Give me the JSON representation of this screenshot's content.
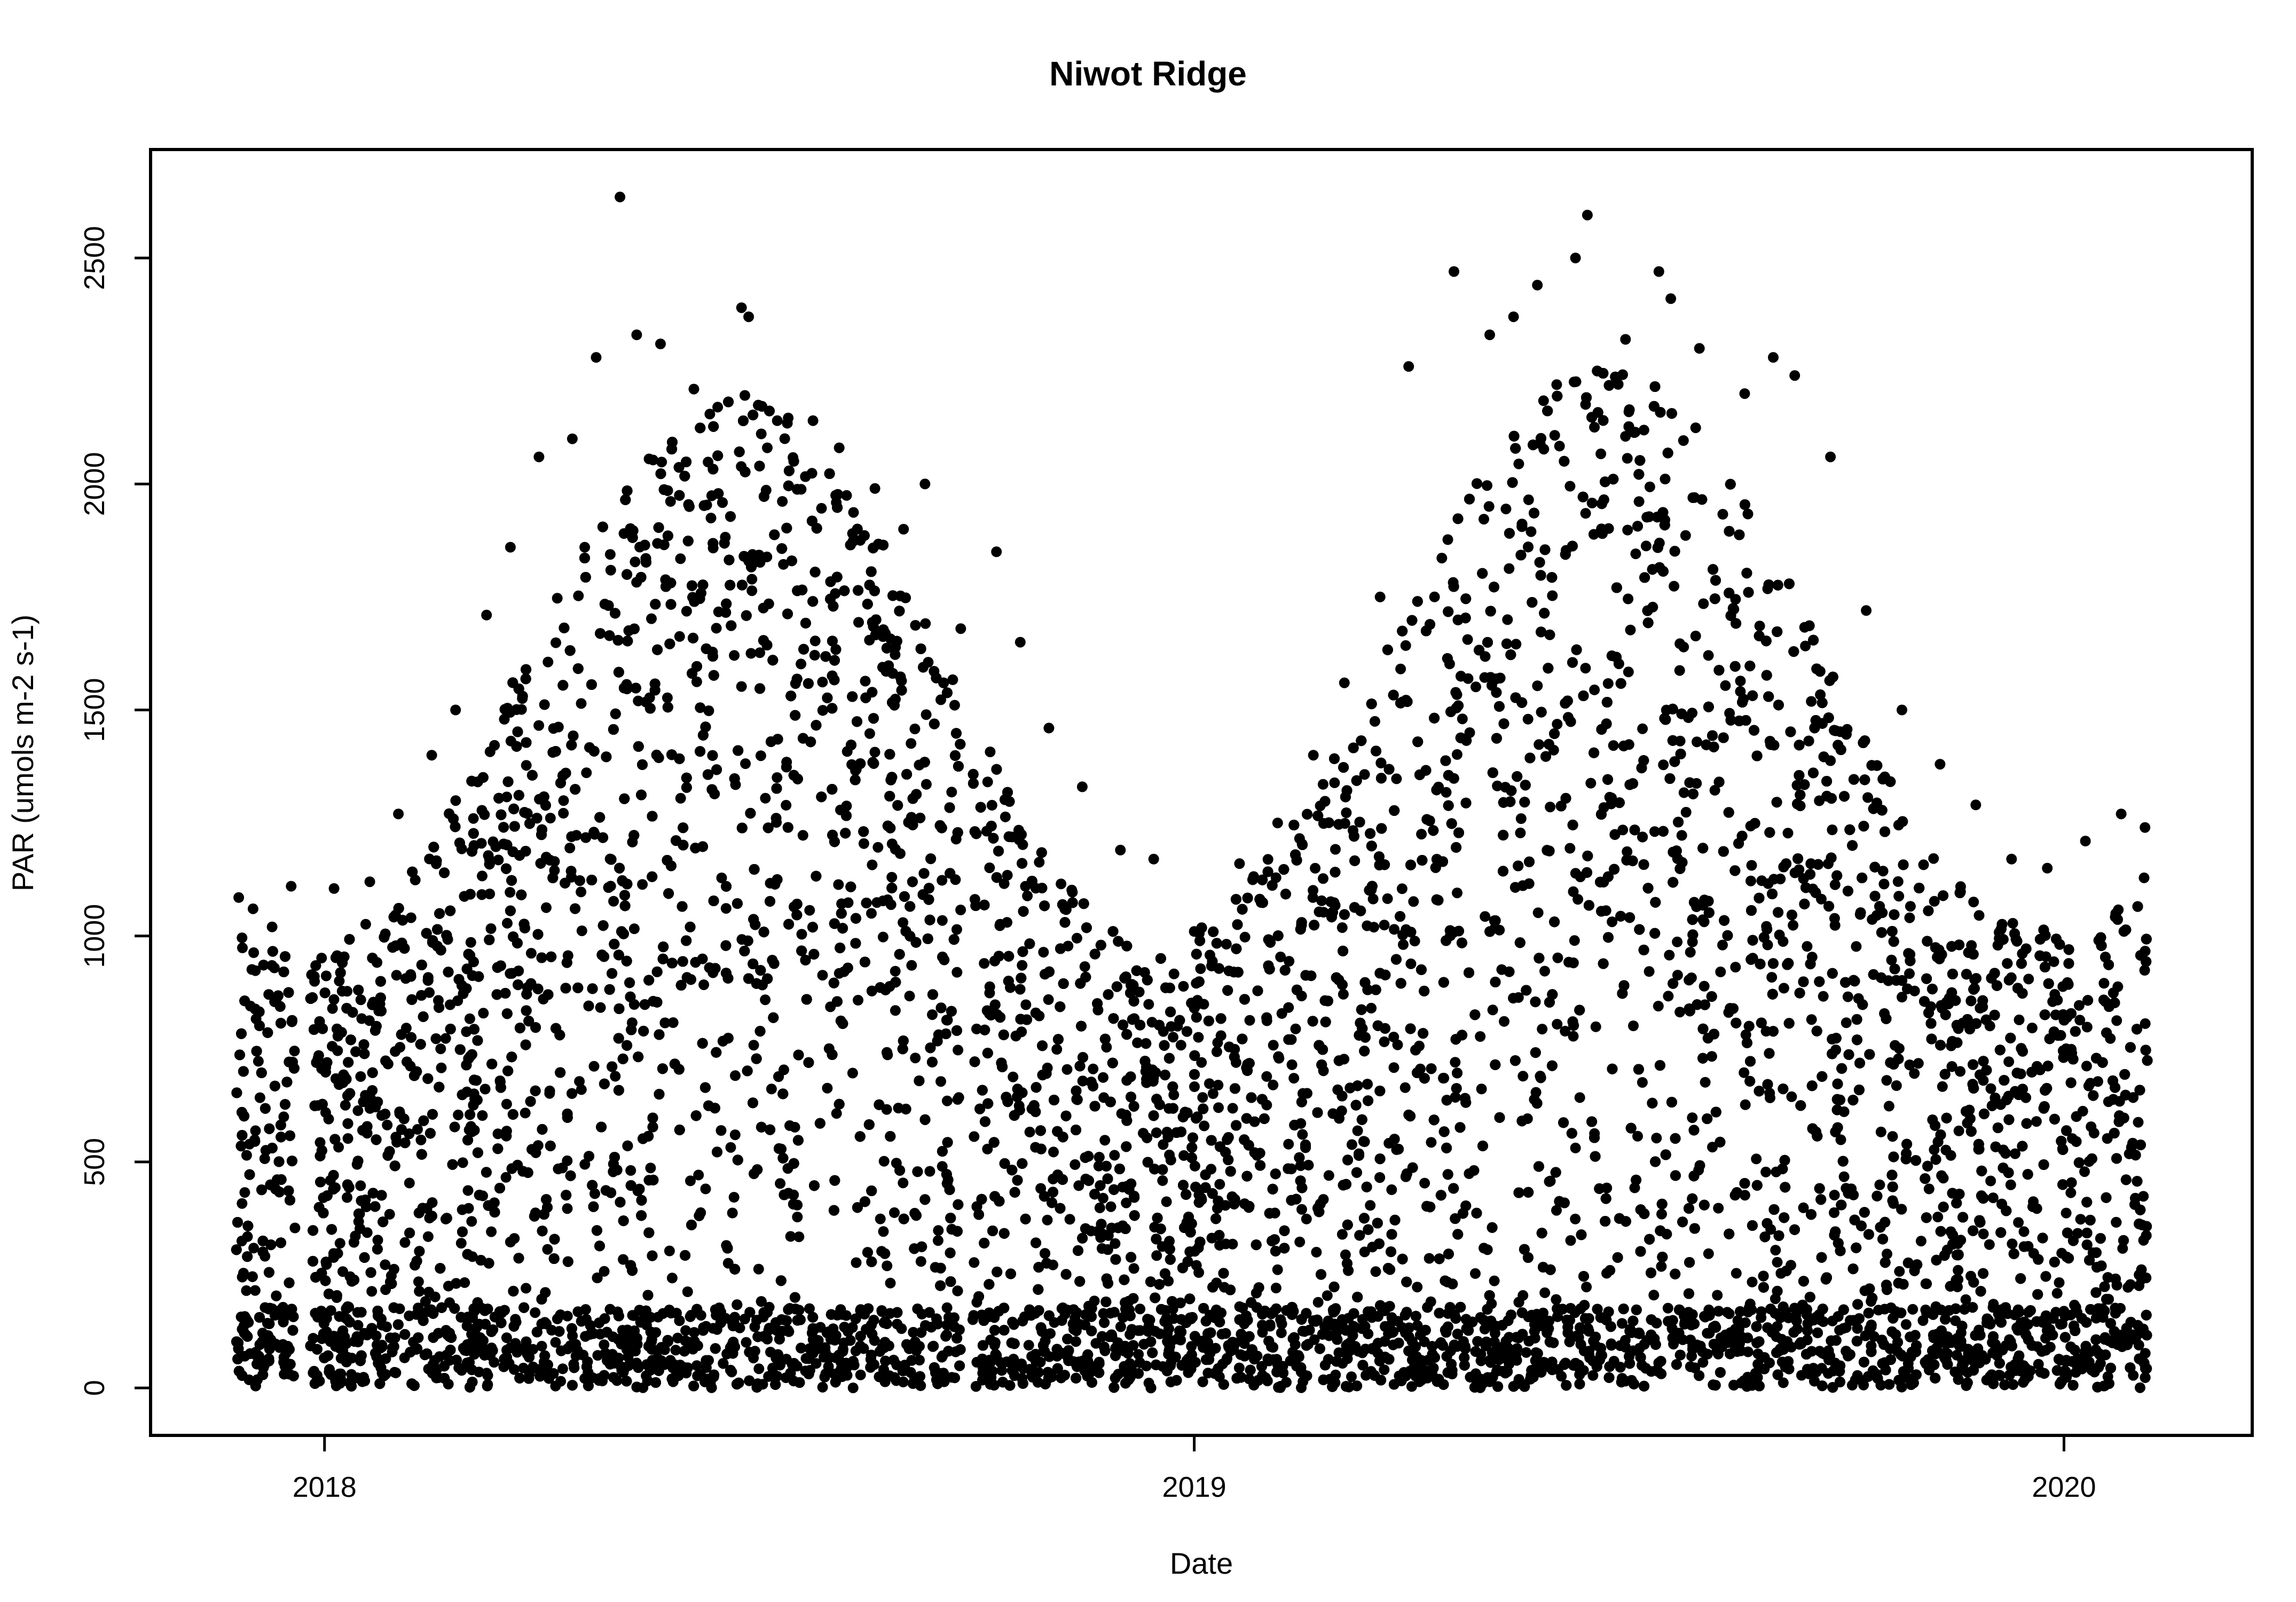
{
  "colors": {
    "background": "#ffffff",
    "points": "#000000",
    "frame": "#000000"
  },
  "chart_data": {
    "type": "scatter",
    "title": "Niwot Ridge",
    "xlabel": "Date",
    "ylabel": "PAR (umols m-2 s-1)",
    "x_axis": {
      "type": "date",
      "range": [
        "2017-10-20",
        "2020-03-20"
      ],
      "ticks": [
        {
          "value": "2018-01-01",
          "label": "2018"
        },
        {
          "value": "2019-01-01",
          "label": "2019"
        },
        {
          "value": "2020-01-01",
          "label": "2020"
        }
      ]
    },
    "y_axis": {
      "range": [
        -105,
        2740
      ],
      "ticks": [
        {
          "value": 0,
          "label": "0"
        },
        {
          "value": 500,
          "label": "500"
        },
        {
          "value": 1000,
          "label": "1000"
        },
        {
          "value": 1500,
          "label": "1500"
        },
        {
          "value": 2000,
          "label": "2000"
        },
        {
          "value": 2500,
          "label": "2500"
        }
      ]
    },
    "grid": false,
    "legend": "none",
    "data_extent": {
      "x_start": "2017-11-25",
      "x_end": "2020-02-05",
      "y_min": 0,
      "y_max": 2635
    },
    "series": [
      {
        "points": [
          {
            "x": "2017-11-26",
            "y": 1085
          },
          {
            "x": "2017-12-02",
            "y": 1060
          },
          {
            "x": "2017-12-10",
            "y": 1020
          },
          {
            "x": "2017-12-18",
            "y": 1110
          },
          {
            "x": "2018-01-05",
            "y": 1105
          },
          {
            "x": "2018-01-20",
            "y": 1120
          },
          {
            "x": "2018-02-01",
            "y": 1270
          },
          {
            "x": "2018-02-15",
            "y": 1400
          },
          {
            "x": "2018-02-25",
            "y": 1500
          },
          {
            "x": "2018-03-10",
            "y": 1710
          },
          {
            "x": "2018-03-20",
            "y": 1860
          },
          {
            "x": "2018-04-01",
            "y": 2060
          },
          {
            "x": "2018-04-15",
            "y": 2100
          },
          {
            "x": "2018-04-25",
            "y": 2280
          },
          {
            "x": "2018-05-05",
            "y": 2635
          },
          {
            "x": "2018-05-12",
            "y": 2330
          },
          {
            "x": "2018-05-22",
            "y": 2310
          },
          {
            "x": "2018-06-05",
            "y": 2210
          },
          {
            "x": "2018-06-15",
            "y": 2170
          },
          {
            "x": "2018-06-25",
            "y": 2390
          },
          {
            "x": "2018-06-28",
            "y": 2370
          },
          {
            "x": "2018-07-10",
            "y": 2140
          },
          {
            "x": "2018-07-25",
            "y": 2140
          },
          {
            "x": "2018-08-05",
            "y": 2080
          },
          {
            "x": "2018-08-20",
            "y": 1990
          },
          {
            "x": "2018-09-01",
            "y": 1900
          },
          {
            "x": "2018-09-10",
            "y": 2000
          },
          {
            "x": "2018-09-25",
            "y": 1680
          },
          {
            "x": "2018-10-10",
            "y": 1850
          },
          {
            "x": "2018-10-20",
            "y": 1650
          },
          {
            "x": "2018-11-01",
            "y": 1460
          },
          {
            "x": "2018-11-15",
            "y": 1330
          },
          {
            "x": "2018-12-01",
            "y": 1190
          },
          {
            "x": "2018-12-15",
            "y": 1170
          },
          {
            "x": "2019-01-01",
            "y": 1010
          },
          {
            "x": "2019-01-20",
            "y": 1160
          },
          {
            "x": "2019-02-05",
            "y": 1250
          },
          {
            "x": "2019-02-20",
            "y": 1400
          },
          {
            "x": "2019-03-05",
            "y": 1560
          },
          {
            "x": "2019-03-20",
            "y": 1750
          },
          {
            "x": "2019-04-01",
            "y": 2260
          },
          {
            "x": "2019-04-20",
            "y": 2470
          },
          {
            "x": "2019-05-05",
            "y": 2330
          },
          {
            "x": "2019-05-15",
            "y": 2370
          },
          {
            "x": "2019-05-25",
            "y": 2440
          },
          {
            "x": "2019-06-10",
            "y": 2500
          },
          {
            "x": "2019-06-15",
            "y": 2595
          },
          {
            "x": "2019-07-01",
            "y": 2320
          },
          {
            "x": "2019-07-15",
            "y": 2470
          },
          {
            "x": "2019-07-20",
            "y": 2410
          },
          {
            "x": "2019-08-01",
            "y": 2300
          },
          {
            "x": "2019-08-20",
            "y": 2200
          },
          {
            "x": "2019-09-01",
            "y": 2280
          },
          {
            "x": "2019-09-10",
            "y": 2240
          },
          {
            "x": "2019-09-25",
            "y": 2060
          },
          {
            "x": "2019-10-10",
            "y": 1720
          },
          {
            "x": "2019-10-25",
            "y": 1500
          },
          {
            "x": "2019-11-10",
            "y": 1380
          },
          {
            "x": "2019-11-25",
            "y": 1290
          },
          {
            "x": "2019-12-10",
            "y": 1170
          },
          {
            "x": "2019-12-25",
            "y": 1150
          },
          {
            "x": "2020-01-10",
            "y": 1210
          },
          {
            "x": "2020-01-25",
            "y": 1270
          },
          {
            "x": "2020-02-04",
            "y": 1240
          }
        ]
      }
    ]
  }
}
